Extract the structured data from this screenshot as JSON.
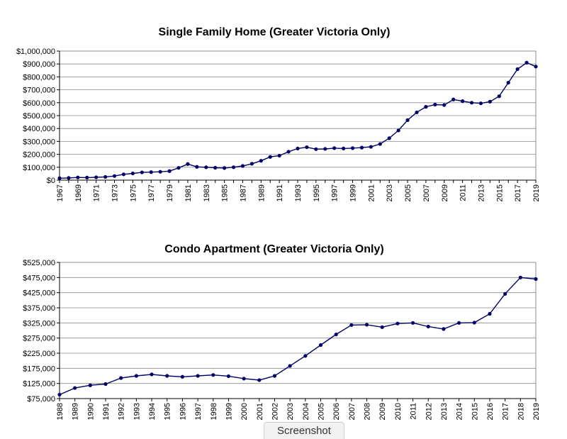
{
  "screenshot_tab": {
    "label": "Screenshot"
  },
  "chart_data": [
    {
      "type": "line",
      "title": "Single Family Home (Greater Victoria Only)",
      "xlabel": "",
      "ylabel": "",
      "ylim": [
        0,
        1000000
      ],
      "yticks": [
        0,
        100000,
        200000,
        300000,
        400000,
        500000,
        600000,
        700000,
        800000,
        900000,
        1000000
      ],
      "ytick_labels": [
        "$0",
        "$100,000",
        "$200,000",
        "$300,000",
        "$400,000",
        "$500,000",
        "$600,000",
        "$700,000",
        "$800,000",
        "$900,000",
        "$1,000,000"
      ],
      "xtick_labels": [
        "1967",
        "1969",
        "1971",
        "1973",
        "1975",
        "1977",
        "1979",
        "1981",
        "1983",
        "1985",
        "1987",
        "1989",
        "1991",
        "1993",
        "1995",
        "1997",
        "1999",
        "2001",
        "2003",
        "2005",
        "2007",
        "2009",
        "2011",
        "2013",
        "2015",
        "2017",
        "2019"
      ],
      "grid": true,
      "line_color": "#000066",
      "x": [
        1967,
        1968,
        1969,
        1970,
        1971,
        1972,
        1973,
        1974,
        1975,
        1976,
        1977,
        1978,
        1979,
        1980,
        1981,
        1982,
        1983,
        1984,
        1985,
        1986,
        1987,
        1988,
        1989,
        1990,
        1991,
        1992,
        1993,
        1994,
        1995,
        1996,
        1997,
        1998,
        1999,
        2000,
        2001,
        2002,
        2003,
        2004,
        2005,
        2006,
        2007,
        2008,
        2009,
        2010,
        2011,
        2012,
        2013,
        2014,
        2015,
        2016,
        2017,
        2018,
        2019
      ],
      "series": [
        {
          "values": [
            15000,
            17000,
            21000,
            20000,
            22000,
            25000,
            32000,
            45000,
            52000,
            60000,
            62000,
            65000,
            70000,
            95000,
            125000,
            103000,
            100000,
            96000,
            94000,
            100000,
            110000,
            127000,
            150000,
            180000,
            190000,
            220000,
            245000,
            255000,
            240000,
            242000,
            248000,
            245000,
            248000,
            252000,
            258000,
            280000,
            325000,
            385000,
            465000,
            525000,
            568000,
            585000,
            582000,
            625000,
            612000,
            600000,
            595000,
            608000,
            650000,
            755000,
            860000,
            910000,
            880000
          ]
        }
      ]
    },
    {
      "type": "line",
      "title": "Condo Apartment (Greater Victoria Only)",
      "xlabel": "",
      "ylabel": "",
      "ylim": [
        75000,
        525000
      ],
      "yticks": [
        75000,
        125000,
        175000,
        225000,
        275000,
        325000,
        375000,
        425000,
        475000,
        525000
      ],
      "ytick_labels": [
        "$75,000",
        "$125,000",
        "$175,000",
        "$225,000",
        "$275,000",
        "$325,000",
        "$375,000",
        "$425,000",
        "$475,000",
        "$525,000"
      ],
      "xtick_labels": [
        "1988",
        "1989",
        "1990",
        "1991",
        "1992",
        "1993",
        "1994",
        "1995",
        "1996",
        "1997",
        "1998",
        "1999",
        "2000",
        "2001",
        "2002",
        "2003",
        "2004",
        "2005",
        "2006",
        "2007",
        "2008",
        "2009",
        "2010",
        "2011",
        "2012",
        "2013",
        "2014",
        "2015",
        "2016",
        "2017",
        "2018",
        "2019"
      ],
      "grid": true,
      "line_color": "#000066",
      "x": [
        1988,
        1989,
        1990,
        1991,
        1992,
        1993,
        1994,
        1995,
        1996,
        1997,
        1998,
        1999,
        2000,
        2001,
        2002,
        2003,
        2004,
        2005,
        2006,
        2007,
        2008,
        2009,
        2010,
        2011,
        2012,
        2013,
        2014,
        2015,
        2016,
        2017,
        2018,
        2019
      ],
      "series": [
        {
          "values": [
            88000,
            110000,
            119000,
            123000,
            143000,
            150000,
            155000,
            150000,
            147000,
            150000,
            153000,
            149000,
            141000,
            136000,
            150000,
            183000,
            216000,
            252000,
            287000,
            318000,
            319000,
            311000,
            323000,
            325000,
            313000,
            305000,
            325000,
            326000,
            355000,
            421000,
            475000,
            470000
          ]
        }
      ]
    }
  ]
}
